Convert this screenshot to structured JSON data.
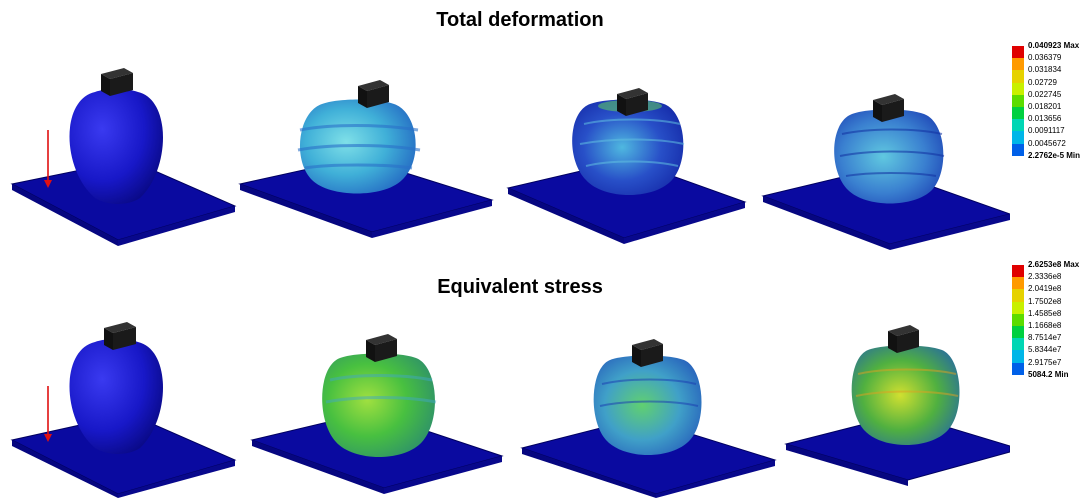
{
  "titles": {
    "deformation": "Total deformation",
    "stress": "Equivalent stress"
  },
  "legend_colors": [
    "#e00000",
    "#ff9a00",
    "#e6d200",
    "#c8f000",
    "#5cdc00",
    "#00d040",
    "#00d6b4",
    "#00b6e8",
    "#0060e8",
    "#0000c8"
  ],
  "deformation_legend": {
    "entries": [
      {
        "label": "0.040923",
        "suffix": " Max",
        "bold": true
      },
      {
        "label": "0.036379",
        "suffix": "",
        "bold": false
      },
      {
        "label": "0.031834",
        "suffix": "",
        "bold": false
      },
      {
        "label": "0.02729",
        "suffix": "",
        "bold": false
      },
      {
        "label": "0.022745",
        "suffix": "",
        "bold": false
      },
      {
        "label": "0.018201",
        "suffix": "",
        "bold": false
      },
      {
        "label": "0.013656",
        "suffix": "",
        "bold": false
      },
      {
        "label": "0.0091117",
        "suffix": "",
        "bold": false
      },
      {
        "label": "0.0045672",
        "suffix": "",
        "bold": false
      },
      {
        "label": "2.2762e-5",
        "suffix": " Min",
        "bold": true
      }
    ]
  },
  "stress_legend": {
    "entries": [
      {
        "label": "2.6253e8",
        "suffix": " Max",
        "bold": true
      },
      {
        "label": "2.3336e8",
        "suffix": "",
        "bold": false
      },
      {
        "label": "2.0419e8",
        "suffix": "",
        "bold": false
      },
      {
        "label": "1.7502e8",
        "suffix": "",
        "bold": false
      },
      {
        "label": "1.4585e8",
        "suffix": "",
        "bold": false
      },
      {
        "label": "1.1668e8",
        "suffix": "",
        "bold": false
      },
      {
        "label": "8.7514e7",
        "suffix": "",
        "bold": false
      },
      {
        "label": "5.8344e7",
        "suffix": "",
        "bold": false
      },
      {
        "label": "2.9175e7",
        "suffix": "",
        "bold": false
      },
      {
        "label": "5084.2",
        "suffix": " Min",
        "bold": true
      }
    ]
  },
  "colors": {
    "plate": "#0a0aa0",
    "plate_edge": "#000060",
    "block": "#111111",
    "arrow": "#e01010",
    "undeformed": "#1818c8",
    "deformation_surface": [
      "#1818c8",
      "#40b0d8",
      "#3060c8",
      "#3a80d0"
    ],
    "stress_surface": [
      "#1818c8",
      "#48c040",
      "#40a0c8",
      "#50b040"
    ]
  }
}
